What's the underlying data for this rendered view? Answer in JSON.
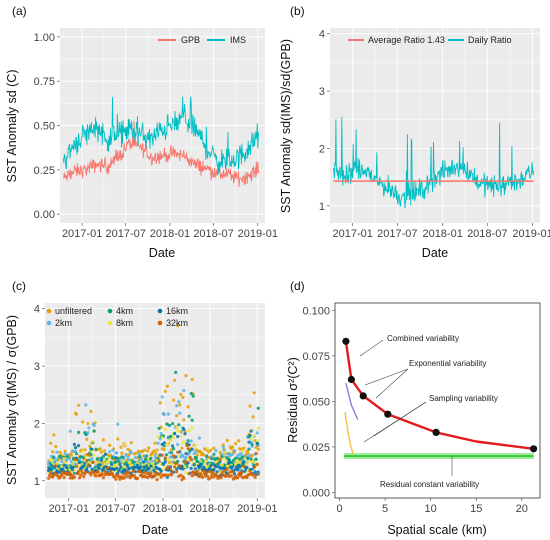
{
  "panels": [
    {
      "label": "(a)",
      "ylabel": "SST Anomaly sd (C)",
      "xlabel": "Date",
      "legend": [
        "GPB",
        "IMS"
      ]
    },
    {
      "label": "(b)",
      "ylabel": "SST Anomaly sd(IMS)/sd(GPB)",
      "xlabel": "Date",
      "legend": [
        "Average Ratio 1.43",
        "Daily Ratio"
      ]
    },
    {
      "label": "(c)",
      "ylabel": "SST Anomaly σ(IMS) / σ(GPB)",
      "xlabel": "Date",
      "legend": [
        "unfiltered",
        "2km",
        "4km",
        "8km",
        "16km",
        "32km"
      ]
    },
    {
      "label": "(d)",
      "ylabel": "Residual σ²(C²)",
      "xlabel": "Spatial scale (km)",
      "annotations": [
        "Combined variability",
        "Exponential variability",
        "Sampling variability",
        "Residual constant variability"
      ]
    }
  ],
  "chart_data": [
    {
      "type": "line",
      "title": "",
      "xlabel": "Date",
      "ylabel": "SST Anomaly sd (C)",
      "xlim": [
        "2016-10-01",
        "2019-01-31"
      ],
      "ylim": [
        -0.05,
        1.05
      ],
      "x_ticks": [
        "2017-01",
        "2017-07",
        "2018-01",
        "2018-07",
        "2019-01"
      ],
      "y_ticks": [
        "0.00",
        "0.25",
        "0.50",
        "0.75",
        "1.00"
      ],
      "legend_position": "top-right",
      "series": [
        {
          "name": "GPB",
          "color": "#f8766d",
          "x": [
            "2016-10-15",
            "2016-12-01",
            "2017-01-15",
            "2017-03-01",
            "2017-04-15",
            "2017-06-01",
            "2017-07-15",
            "2017-09-01",
            "2017-10-15",
            "2017-12-01",
            "2018-01-15",
            "2018-03-01",
            "2018-04-15",
            "2018-06-01",
            "2018-07-15",
            "2018-09-01",
            "2018-10-15",
            "2018-12-01",
            "2019-01-05"
          ],
          "values": [
            0.2,
            0.24,
            0.25,
            0.28,
            0.27,
            0.32,
            0.4,
            0.38,
            0.32,
            0.33,
            0.34,
            0.33,
            0.28,
            0.26,
            0.23,
            0.22,
            0.2,
            0.22,
            0.26
          ]
        },
        {
          "name": "IMS",
          "color": "#00bfc4",
          "x": [
            "2016-10-15",
            "2016-12-01",
            "2017-01-15",
            "2017-03-01",
            "2017-04-15",
            "2017-06-01",
            "2017-07-15",
            "2017-09-01",
            "2017-10-15",
            "2017-12-01",
            "2018-01-15",
            "2018-03-01",
            "2018-04-15",
            "2018-06-01",
            "2018-07-15",
            "2018-09-01",
            "2018-10-15",
            "2018-12-01",
            "2019-01-05"
          ],
          "values": [
            0.3,
            0.4,
            0.45,
            0.5,
            0.42,
            0.45,
            0.48,
            0.45,
            0.42,
            0.48,
            0.5,
            0.55,
            0.48,
            0.38,
            0.3,
            0.3,
            0.32,
            0.38,
            0.45
          ]
        }
      ]
    },
    {
      "type": "line",
      "title": "",
      "xlabel": "Date",
      "ylabel": "SST Anomaly sd(IMS)/sd(GPB)",
      "xlim": [
        "2016-10-01",
        "2019-01-31"
      ],
      "ylim": [
        0.7,
        4.1
      ],
      "x_ticks": [
        "2017-01",
        "2017-07",
        "2018-01",
        "2018-07",
        "2019-01"
      ],
      "y_ticks": [
        "1",
        "2",
        "3",
        "4"
      ],
      "legend_position": "top-right",
      "series": [
        {
          "name": "Average Ratio 1.43",
          "color": "#f8766d",
          "x": [
            "2016-10-15",
            "2019-01-05"
          ],
          "values": [
            1.43,
            1.43
          ]
        },
        {
          "name": "Daily Ratio",
          "color": "#00bfc4",
          "x": [
            "2016-10-15",
            "2016-12-01",
            "2017-01-15",
            "2017-03-01",
            "2017-04-15",
            "2017-06-01",
            "2017-07-15",
            "2017-09-01",
            "2017-10-15",
            "2017-12-01",
            "2018-01-15",
            "2018-03-01",
            "2018-04-15",
            "2018-06-01",
            "2018-07-15",
            "2018-09-01",
            "2018-10-15",
            "2018-12-01",
            "2019-01-05"
          ],
          "values": [
            1.6,
            1.5,
            1.6,
            1.6,
            1.4,
            1.3,
            1.15,
            1.2,
            1.3,
            1.5,
            1.6,
            1.7,
            1.6,
            1.4,
            1.35,
            1.35,
            1.4,
            1.5,
            1.6
          ]
        }
      ]
    },
    {
      "type": "scatter",
      "title": "",
      "xlabel": "Date",
      "ylabel": "SST Anomaly σ(IMS) / σ(GPB)",
      "xlim": [
        "2016-10-01",
        "2019-01-31"
      ],
      "ylim": [
        0.7,
        4.1
      ],
      "x_ticks": [
        "2017-01",
        "2017-07",
        "2018-01",
        "2018-07",
        "2019-01"
      ],
      "y_ticks": [
        "1",
        "2",
        "3",
        "4"
      ],
      "legend_position": "top-left",
      "series": [
        {
          "name": "unfiltered",
          "color": "#e69f00",
          "typical_value": 1.45
        },
        {
          "name": "2km",
          "color": "#56b4e9",
          "typical_value": 1.35
        },
        {
          "name": "4km",
          "color": "#009e73",
          "typical_value": 1.3
        },
        {
          "name": "8km",
          "color": "#f0e442",
          "typical_value": 1.25
        },
        {
          "name": "16km",
          "color": "#0072b2",
          "typical_value": 1.2
        },
        {
          "name": "32km",
          "color": "#d55e00",
          "typical_value": 1.1
        }
      ]
    },
    {
      "type": "scatter",
      "title": "",
      "xlabel": "Spatial scale (km)",
      "ylabel": "Residual σ²(C²)",
      "xlim": [
        -0.5,
        22
      ],
      "ylim": [
        -0.003,
        0.104
      ],
      "x_ticks": [
        "0",
        "5",
        "10",
        "15",
        "20"
      ],
      "y_ticks": [
        "0.000",
        "0.025",
        "0.050",
        "0.075",
        "0.100"
      ],
      "points": {
        "x": [
          0.7,
          1.3,
          2.6,
          5.3,
          10.6,
          21.3
        ],
        "values": [
          0.083,
          0.062,
          0.053,
          0.043,
          0.033,
          0.024
        ]
      },
      "series": [
        {
          "name": "Combined variability",
          "color": "#e31a1c",
          "x": [
            0.7,
            1.3,
            2.6,
            5.3,
            10.6,
            15,
            21.3
          ],
          "values": [
            0.083,
            0.062,
            0.053,
            0.043,
            0.033,
            0.028,
            0.024
          ]
        },
        {
          "name": "Exponential variability",
          "color": "#8b7fd8",
          "x": [
            0.7,
            1.3,
            2.0
          ],
          "values": [
            0.06,
            0.048,
            0.04
          ]
        },
        {
          "name": "Sampling variability",
          "color": "#f5c040",
          "x": [
            0.6,
            0.9,
            1.2,
            1.5
          ],
          "values": [
            0.044,
            0.034,
            0.026,
            0.021
          ]
        },
        {
          "name": "Residual constant variability",
          "color": "#33cc33",
          "x": [
            0.5,
            21.3
          ],
          "values": [
            0.02,
            0.02
          ]
        }
      ]
    }
  ]
}
